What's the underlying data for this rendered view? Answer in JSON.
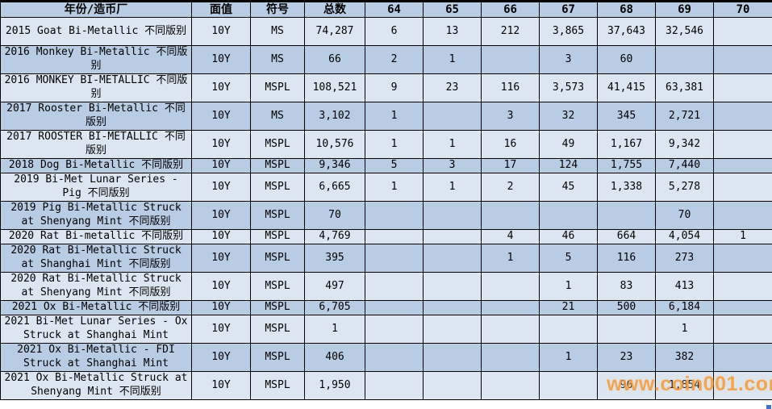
{
  "table": {
    "columns": [
      "年份/造币厂",
      "面值",
      "符号",
      "总数",
      "64",
      "65",
      "66",
      "67",
      "68",
      "69",
      "70"
    ],
    "rows": [
      {
        "label": "2015 Goat Bi-Metallic 不同版别",
        "face_value": "10Y",
        "symbol": "MS",
        "total": "74,287",
        "grades": [
          "6",
          "13",
          "212",
          "3,865",
          "37,643",
          "32,546",
          ""
        ],
        "single_line": false
      },
      {
        "label": "2016 Monkey Bi-Metallic 不同版别",
        "face_value": "10Y",
        "symbol": "MS",
        "total": "66",
        "grades": [
          "2",
          "1",
          "",
          "3",
          "60",
          "",
          ""
        ],
        "single_line": false
      },
      {
        "label": "2016 MONKEY BI-METALLIC 不同版别",
        "face_value": "10Y",
        "symbol": "MSPL",
        "total": "108,521",
        "grades": [
          "9",
          "23",
          "116",
          "3,573",
          "41,415",
          "63,381",
          ""
        ],
        "single_line": false
      },
      {
        "label": "2017 Rooster Bi-Metallic 不同版别",
        "face_value": "10Y",
        "symbol": "MS",
        "total": "3,102",
        "grades": [
          "1",
          "",
          "3",
          "32",
          "345",
          "2,721",
          ""
        ],
        "single_line": false
      },
      {
        "label": "2017 ROOSTER BI-METALLIC 不同版别",
        "face_value": "10Y",
        "symbol": "MSPL",
        "total": "10,576",
        "grades": [
          "1",
          "1",
          "16",
          "49",
          "1,167",
          "9,342",
          ""
        ],
        "single_line": false
      },
      {
        "label": "2018 Dog Bi-Metallic 不同版别",
        "face_value": "10Y",
        "symbol": "MSPL",
        "total": "9,346",
        "grades": [
          "5",
          "3",
          "17",
          "124",
          "1,755",
          "7,440",
          ""
        ],
        "single_line": true
      },
      {
        "label": "2019 Bi-Met Lunar Series - Pig 不同版别",
        "face_value": "10Y",
        "symbol": "MSPL",
        "total": "6,665",
        "grades": [
          "1",
          "1",
          "2",
          "45",
          "1,338",
          "5,278",
          ""
        ],
        "single_line": false
      },
      {
        "label": "2019 Pig Bi-Metallic Struck at Shenyang Mint 不同版别",
        "face_value": "10Y",
        "symbol": "MSPL",
        "total": "70",
        "grades": [
          "",
          "",
          "",
          "",
          "",
          "70",
          ""
        ],
        "single_line": false
      },
      {
        "label": "2020 Rat Bi-metallic 不同版别",
        "face_value": "10Y",
        "symbol": "MSPL",
        "total": "4,769",
        "grades": [
          "",
          "",
          "4",
          "46",
          "664",
          "4,054",
          "1"
        ],
        "single_line": true
      },
      {
        "label": "2020 Rat Bi-Metallic Struck at Shanghai Mint 不同版别",
        "face_value": "10Y",
        "symbol": "MSPL",
        "total": "395",
        "grades": [
          "",
          "",
          "1",
          "5",
          "116",
          "273",
          ""
        ],
        "single_line": false
      },
      {
        "label": "2020 Rat Bi-Metallic Struck at Shenyang Mint 不同版别",
        "face_value": "10Y",
        "symbol": "MSPL",
        "total": "497",
        "grades": [
          "",
          "",
          "",
          "1",
          "83",
          "413",
          ""
        ],
        "single_line": false
      },
      {
        "label": "2021 Ox Bi-Metallic 不同版别",
        "face_value": "10Y",
        "symbol": "MSPL",
        "total": "6,705",
        "grades": [
          "",
          "",
          "",
          "21",
          "500",
          "6,184",
          ""
        ],
        "single_line": true
      },
      {
        "label": "2021 Bi-Met Lunar Series - Ox Struck at Shanghai Mint",
        "face_value": "10Y",
        "symbol": "MSPL",
        "total": "1",
        "grades": [
          "",
          "",
          "",
          "",
          "",
          "1",
          ""
        ],
        "single_line": false
      },
      {
        "label": "2021 Ox Bi-Metallic - FDI Struck at Shanghai Mint",
        "face_value": "10Y",
        "symbol": "MSPL",
        "total": "406",
        "grades": [
          "",
          "",
          "",
          "1",
          "23",
          "382",
          ""
        ],
        "single_line": false
      },
      {
        "label": "2021 Ox Bi-Metallic Struck at Shenyang Mint 不同版别",
        "face_value": "10Y",
        "symbol": "MSPL",
        "total": "1,950",
        "grades": [
          "",
          "",
          "",
          "",
          "96",
          "1,854",
          ""
        ],
        "single_line": false
      }
    ]
  },
  "watermark": {
    "text": "www.coin001.com"
  },
  "colors": {
    "row_light": "#dce6f1",
    "row_dark": "#b8cce4",
    "border": "#000000",
    "watermark": "#f29d44",
    "autofill_handle": "#4472c4"
  }
}
